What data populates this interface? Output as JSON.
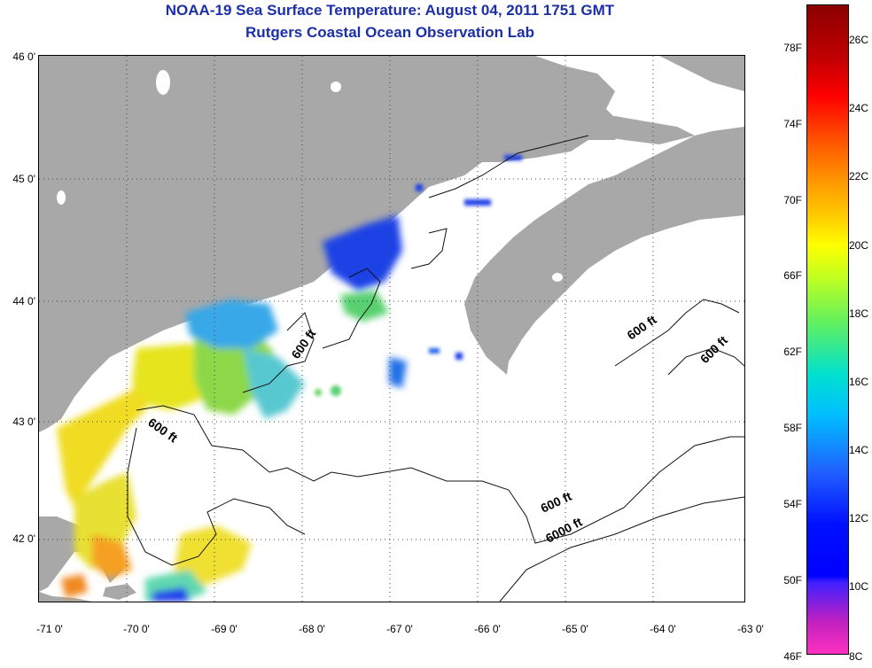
{
  "header": {
    "title": "NOAA-19 Sea Surface Temperature:  August 04, 2011 1751 GMT",
    "subtitle": "Rutgers Coastal Ocean Observation Lab"
  },
  "map": {
    "lat_labels": [
      "46 0'",
      "45 0'",
      "44 0'",
      "43 0'",
      "42 0'"
    ],
    "lon_labels": [
      "-71 0'",
      "-70 0'",
      "-69 0'",
      "-68 0'",
      "-67 0'",
      "-66 0'",
      "-65 0'",
      "-64 0'",
      "-63 0'"
    ],
    "lat_range": [
      41.5,
      46
    ],
    "lon_range": [
      -71,
      -63
    ],
    "land_color": "#a8a8a8",
    "contour_labels": [
      "600 ft",
      "600 ft",
      "600 ft",
      "600 ft",
      "600 ft",
      "6000 ft"
    ]
  },
  "colorbar": {
    "fahrenheit_labels": [
      "78F",
      "74F",
      "70F",
      "66F",
      "62F",
      "58F",
      "54F",
      "50F",
      "46F"
    ],
    "celsius_labels": [
      "26C",
      "24C",
      "22C",
      "20C",
      "18C",
      "16C",
      "14C",
      "12C",
      "10C",
      "8C"
    ],
    "range_c": [
      8,
      27
    ]
  }
}
